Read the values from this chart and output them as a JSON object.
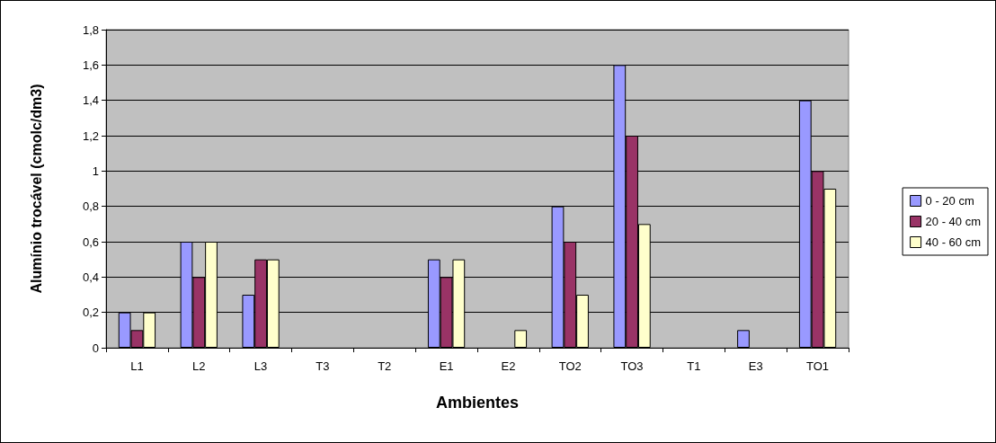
{
  "chart_data": {
    "type": "bar",
    "xlabel": "Ambientes",
    "ylabel": "Alumínio trocável (cmolc/dm3)",
    "categories": [
      "L1",
      "L2",
      "L3",
      "T3",
      "T2",
      "E1",
      "E2",
      "TO2",
      "TO3",
      "T1",
      "E3",
      "TO1"
    ],
    "series": [
      {
        "name": "0 - 20 cm",
        "color": "#9999ff",
        "values": [
          0.2,
          0.6,
          0.3,
          0,
          0,
          0.5,
          0,
          0.8,
          1.6,
          0,
          0.1,
          1.4
        ]
      },
      {
        "name": "20 - 40 cm",
        "color": "#993366",
        "values": [
          0.1,
          0.4,
          0.5,
          0,
          0,
          0.4,
          0,
          0.6,
          1.2,
          0,
          0,
          1.0
        ]
      },
      {
        "name": "40 - 60 cm",
        "color": "#ffffcc",
        "values": [
          0.2,
          0.6,
          0.5,
          0,
          0,
          0.5,
          0.1,
          0.3,
          0.7,
          0,
          0,
          0.9
        ]
      }
    ],
    "ylim": [
      0,
      1.8
    ],
    "yticks": [
      0,
      {
        "value": 0.2,
        "label": "0,2"
      },
      {
        "value": 0.4,
        "label": "0,4"
      },
      {
        "value": 0.6,
        "label": "0,6"
      },
      {
        "value": 0.8,
        "label": "0,8"
      },
      1,
      {
        "value": 1.2,
        "label": "1,2"
      },
      {
        "value": 1.4,
        "label": "1,4"
      },
      {
        "value": 1.6,
        "label": "1,6"
      },
      {
        "value": 1.8,
        "label": "1,8"
      }
    ],
    "grid": "y",
    "legend": "right"
  }
}
